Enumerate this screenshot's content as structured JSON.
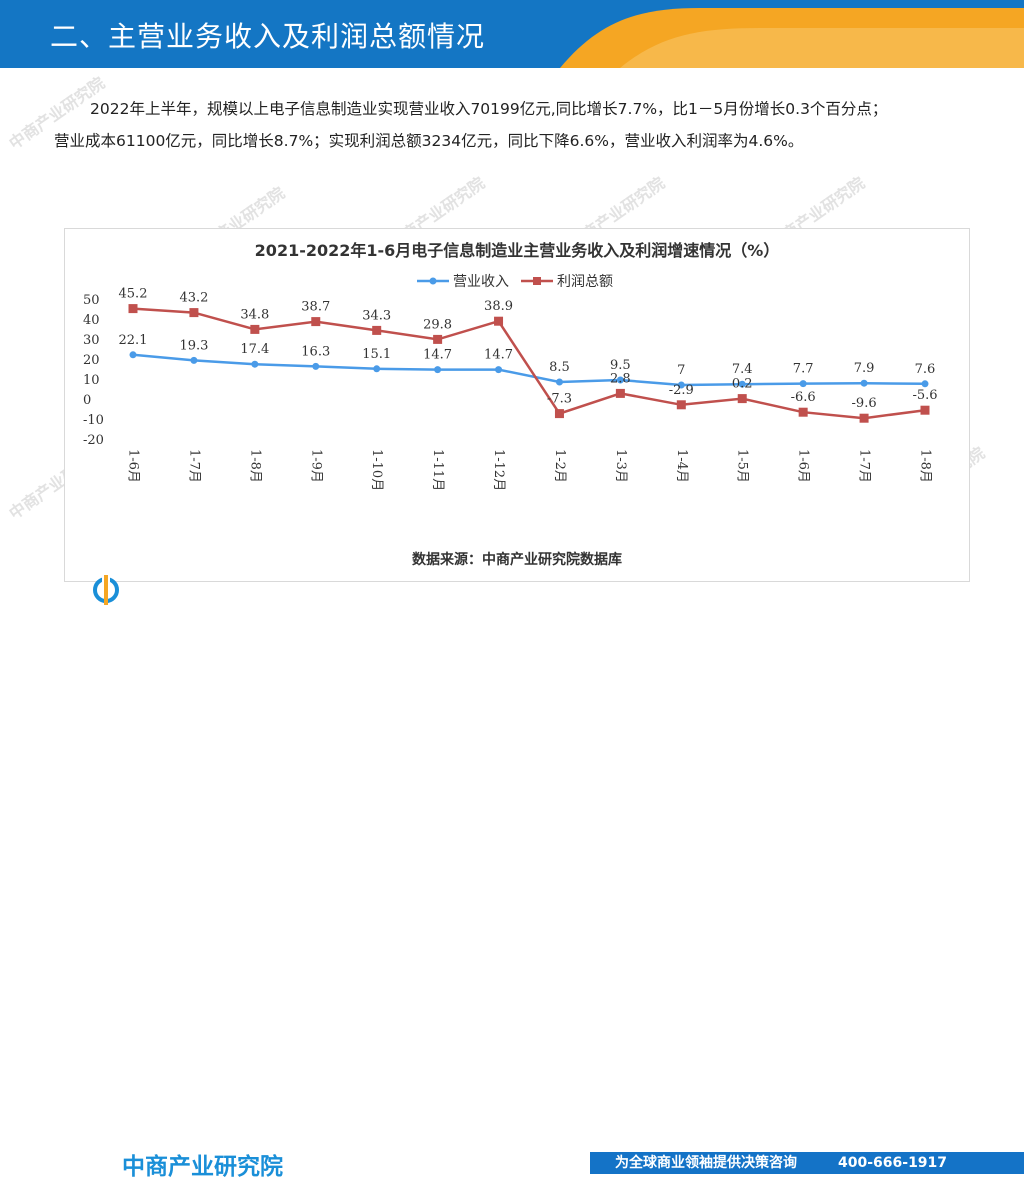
{
  "header": {
    "title": "二、主营业务收入及利润总额情况"
  },
  "paragraph": {
    "line1": "2022年上半年，规模以上电子信息制造业实现营业收入70199亿元,同比增长7.7%，比1－5月份增长0.3个百分点；",
    "line2": "营业成本61100亿元，同比增长8.7%；实现利润总额3234亿元，同比下降6.6%，营业收入利润率为4.6%。"
  },
  "chart_data": {
    "type": "line",
    "title": "2021-2022年1-6月电子信息制造业主营业务收入及利润增速情况（%）",
    "categories": [
      "1-6月",
      "1-7月",
      "1-8月",
      "1-9月",
      "1-10月",
      "1-11月",
      "1-12月",
      "1-2月",
      "1-3月",
      "1-4月",
      "1-5月",
      "1-6月",
      "1-7月",
      "1-8月"
    ],
    "series": [
      {
        "name": "营业收入",
        "color": "#4a9be8",
        "marker": "circle",
        "values": [
          22.1,
          19.3,
          17.4,
          16.3,
          15.1,
          14.7,
          14.7,
          8.5,
          9.5,
          7,
          7.4,
          7.7,
          7.9,
          7.6
        ],
        "labels": [
          "22.1",
          "19.3",
          "17.4",
          "16.3",
          "15.1",
          "14.7",
          "14.7",
          "8.5",
          "9.5",
          "7",
          "7.4",
          "7.7",
          "7.9",
          "7.6"
        ]
      },
      {
        "name": "利润总额",
        "color": "#c0504d",
        "marker": "square",
        "values": [
          45.2,
          43.2,
          34.8,
          38.7,
          34.3,
          29.8,
          38.9,
          -7.3,
          2.8,
          -2.9,
          0.2,
          -6.6,
          -9.6,
          -5.6
        ],
        "labels": [
          "45.2",
          "43.2",
          "34.8",
          "38.7",
          "34.3",
          "29.8",
          "38.9",
          "-7.3",
          "2.8",
          "-2.9",
          "0.2",
          "-6.6",
          "-9.6",
          "-5.6"
        ]
      }
    ],
    "yticks": [
      "50",
      "40",
      "30",
      "20",
      "10",
      "0",
      "-10",
      "-20"
    ],
    "ylim": [
      -20,
      50
    ],
    "legend": "top-center",
    "grid": false
  },
  "source": "数据来源：中商产业研究院数据库",
  "footer": {
    "logo": "中商产业研究院",
    "slogan": "为全球商业领袖提供决策咨询",
    "phone": "400-666-1917"
  },
  "watermark": "中商产业研究院",
  "colors": {
    "header_blue": "#1476c4",
    "header_orange": "#f5a623",
    "footer_blue": "#1473c7"
  }
}
